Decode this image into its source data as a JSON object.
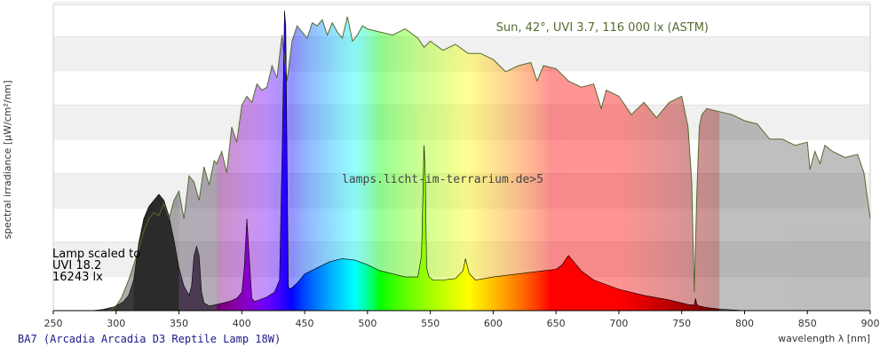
{
  "chart_data": {
    "type": "area",
    "title": "BA7 (Arcadia Arcadia D3 Reptile Lamp 18W)",
    "watermark": "lamps.licht-im-terrarium.de>5",
    "xlabel": "wavelength λ [nm]",
    "ylabel": "spectral irradiance [µW/cm²/nm]",
    "xlim": [
      250,
      900
    ],
    "x_ticks": [
      250,
      300,
      350,
      400,
      450,
      500,
      550,
      600,
      650,
      700,
      750,
      800,
      850,
      900
    ],
    "ylim": [
      0,
      100
    ],
    "grid": "horizontal bands",
    "colors": {
      "sun_line": "#556b2f",
      "title": "#1a1a8c",
      "band": "#f0f0f0",
      "axis": "#000000"
    },
    "series": [
      {
        "name": "Sun, 42°, UVI 3.7, 116 000 lx (ASTM)",
        "x": [
          292,
          296,
          300,
          304,
          306,
          310,
          314,
          318,
          322,
          326,
          330,
          334,
          338,
          342,
          346,
          350,
          354,
          358,
          362,
          366,
          370,
          374,
          378,
          380,
          384,
          388,
          392,
          396,
          400,
          404,
          408,
          412,
          416,
          420,
          424,
          428,
          432,
          436,
          440,
          444,
          448,
          452,
          456,
          460,
          464,
          468,
          472,
          476,
          480,
          484,
          488,
          492,
          496,
          500,
          510,
          520,
          530,
          540,
          545,
          550,
          560,
          570,
          580,
          590,
          600,
          610,
          620,
          630,
          635,
          640,
          650,
          660,
          670,
          680,
          686,
          690,
          700,
          710,
          720,
          730,
          740,
          750,
          755,
          758,
          760,
          762,
          764,
          766,
          770,
          780,
          790,
          800,
          810,
          820,
          830,
          840,
          850,
          852,
          856,
          860,
          864,
          870,
          880,
          890,
          895,
          900
        ],
        "values": [
          0,
          0.3,
          1.5,
          4,
          6,
          10,
          15,
          20,
          26,
          30,
          32,
          31,
          35,
          30,
          36,
          39,
          30,
          44,
          42,
          36,
          47,
          41,
          49,
          48,
          52,
          45,
          60,
          55,
          67,
          70,
          68,
          74,
          72,
          73,
          80,
          76,
          90,
          75,
          88,
          93,
          91,
          89,
          94,
          93,
          95,
          90,
          94,
          91,
          89,
          96,
          88,
          90,
          93,
          92,
          91,
          90,
          92,
          89,
          86,
          88,
          85,
          87,
          84,
          84,
          82,
          78,
          80,
          81,
          75,
          80,
          79,
          75,
          73,
          74,
          66,
          72,
          70,
          64,
          68,
          63,
          68,
          70,
          60,
          42,
          6,
          38,
          60,
          64,
          66,
          65,
          64,
          62,
          61,
          56,
          56,
          54,
          55,
          46,
          52,
          48,
          54,
          52,
          50,
          51,
          45,
          30
        ]
      },
      {
        "name": "Lamp scaled to UVI 18.2 16243 lx",
        "x": [
          250,
          280,
          286,
          290,
          294,
          298,
          302,
          306,
          310,
          314,
          318,
          322,
          326,
          330,
          334,
          338,
          342,
          346,
          350,
          354,
          358,
          360,
          362,
          364,
          366,
          368,
          370,
          374,
          380,
          390,
          396,
          400,
          402,
          404,
          406,
          408,
          410,
          414,
          420,
          426,
          430,
          432,
          434,
          435,
          436,
          437,
          438,
          440,
          444,
          450,
          460,
          470,
          480,
          490,
          500,
          510,
          520,
          530,
          540,
          543,
          545,
          546,
          547,
          549,
          552,
          560,
          570,
          576,
          578,
          581,
          586,
          600,
          620,
          640,
          650,
          655,
          658,
          660,
          664,
          670,
          680,
          700,
          720,
          740,
          755,
          760,
          761,
          762,
          764,
          770,
          780,
          800,
          900
        ],
        "values": [
          0,
          0,
          0.2,
          0.4,
          0.8,
          1.2,
          2,
          3,
          5,
          10,
          22,
          30,
          34,
          36,
          38,
          36,
          31,
          23,
          14,
          8,
          5,
          8,
          18,
          21,
          18,
          6,
          2.5,
          1.5,
          2,
          3,
          4,
          6,
          14,
          30,
          17,
          4,
          3,
          3.5,
          4.5,
          6,
          10,
          50,
          98,
          93,
          50,
          8,
          7,
          7.5,
          9,
          12,
          14,
          16,
          17,
          16.5,
          15,
          13,
          12,
          11,
          11,
          18,
          54,
          43,
          14,
          11,
          10,
          10,
          10.5,
          13,
          17,
          12,
          10,
          11,
          12,
          13,
          13.5,
          15,
          17,
          18,
          16,
          13,
          10,
          7,
          5,
          3.5,
          2,
          1.8,
          4,
          2,
          1.5,
          1,
          0.5,
          0,
          0
        ]
      }
    ],
    "annotations": {
      "sun_label": "Sun, 42°, UVI 3.7, 116 000 lx (ASTM)",
      "lamp_label": [
        "Lamp scaled to",
        "UVI 18.2",
        "16243 lx"
      ]
    }
  }
}
